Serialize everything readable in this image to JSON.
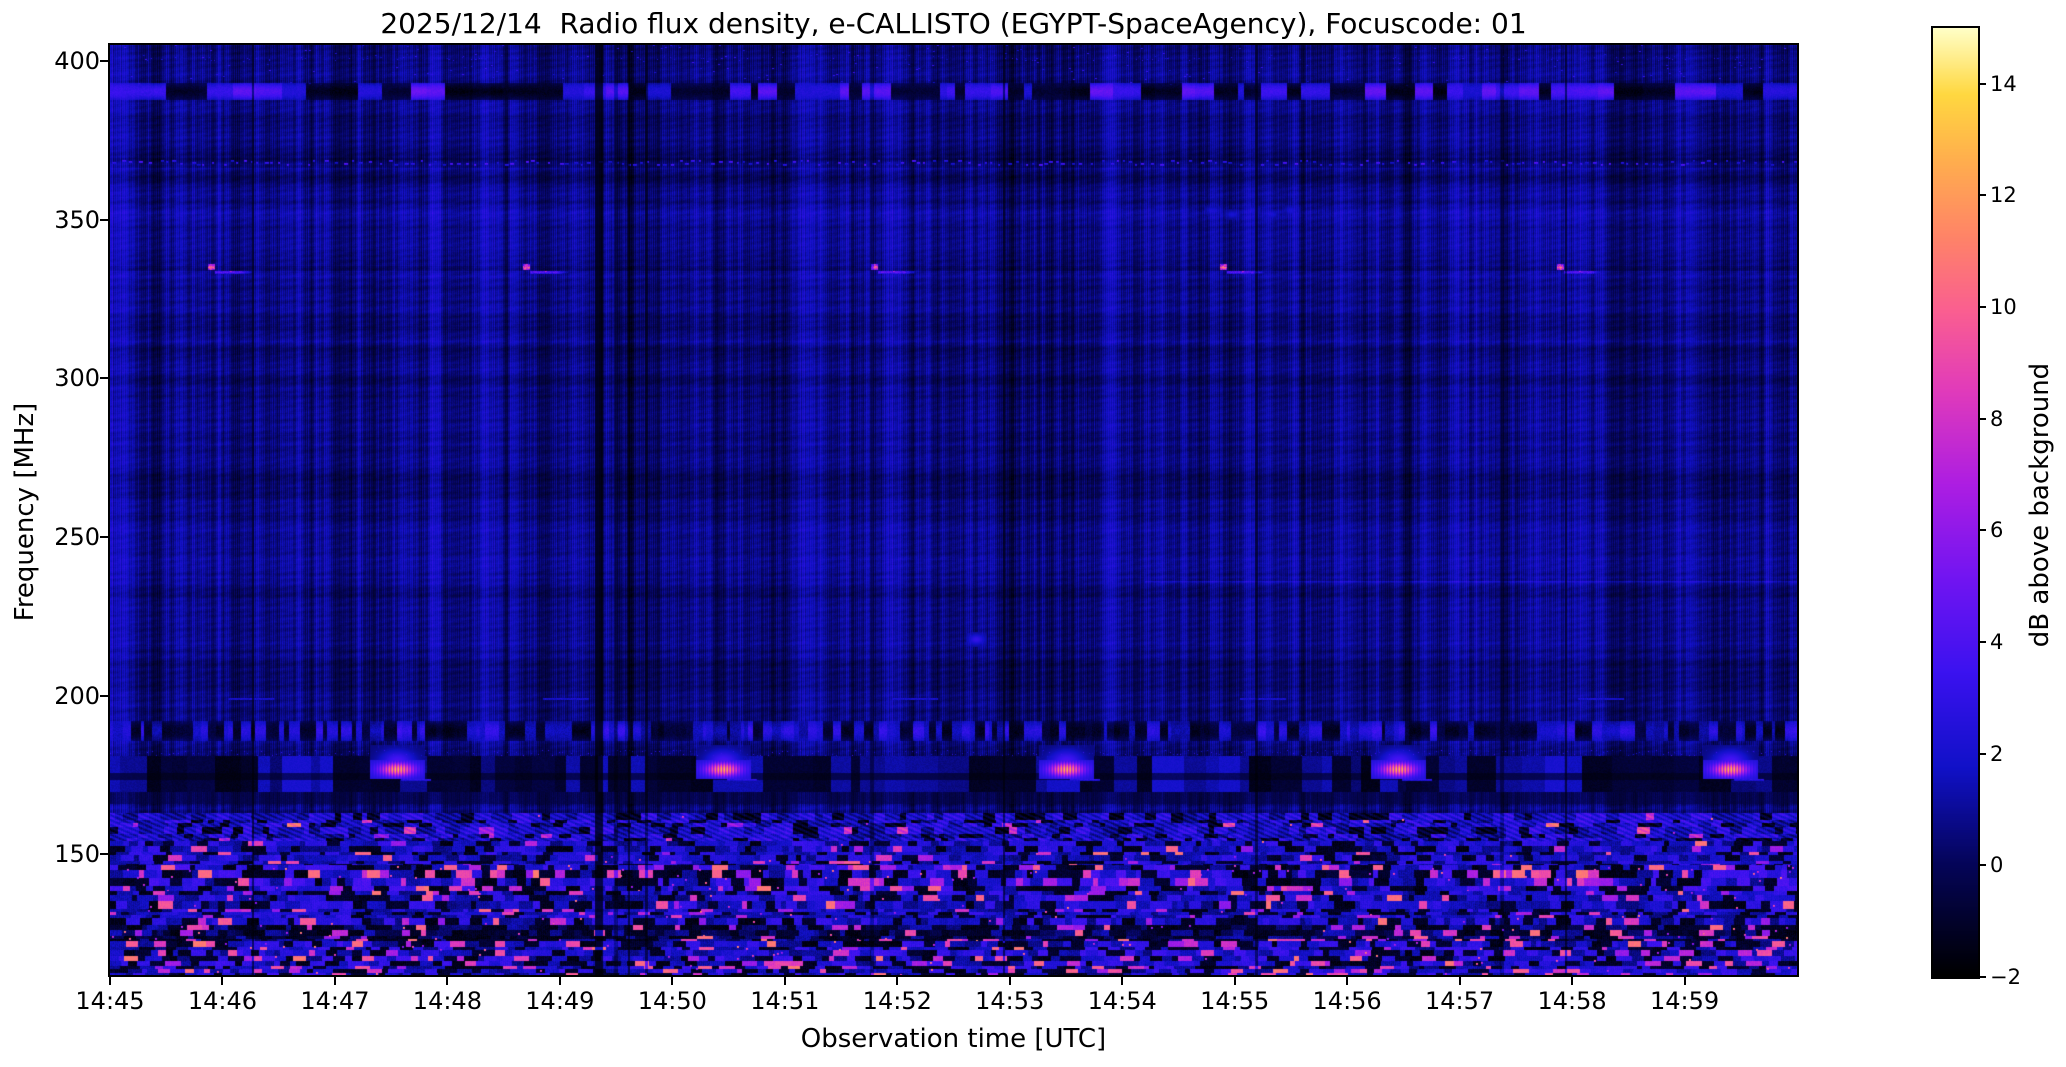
{
  "figure": {
    "title": "2025/12/14  Radio flux density, e-CALLISTO (EGYPT-SpaceAgency), Focuscode: 01"
  },
  "chart_data": {
    "type": "heatmap",
    "subtype": "radio-spectrogram",
    "title": "2025/12/14  Radio flux density, e-CALLISTO (EGYPT-SpaceAgency), Focuscode: 01",
    "xlabel": "Observation time [UTC]",
    "ylabel": "Frequency [MHz]",
    "x_tick_labels": [
      "14:45",
      "14:46",
      "14:47",
      "14:48",
      "14:49",
      "14:50",
      "14:51",
      "14:52",
      "14:53",
      "14:54",
      "14:55",
      "14:56",
      "14:57",
      "14:58",
      "14:59"
    ],
    "x_range_minutes": [
      0,
      15
    ],
    "y_tick_values": [
      400,
      350,
      300,
      250,
      200,
      150
    ],
    "freq_range_mhz": [
      112,
      405
    ],
    "grid": false,
    "colorbar": {
      "label": "dB above background",
      "tick_values": [
        -2,
        0,
        2,
        4,
        6,
        8,
        10,
        12,
        14
      ],
      "range_db": [
        -2,
        15
      ],
      "colormap_stops": [
        [
          0.0,
          "#000000"
        ],
        [
          0.12,
          "#05055a"
        ],
        [
          0.22,
          "#1111c8"
        ],
        [
          0.32,
          "#3b12f0"
        ],
        [
          0.42,
          "#7215f2"
        ],
        [
          0.52,
          "#ae1ee2"
        ],
        [
          0.62,
          "#e23cba"
        ],
        [
          0.7,
          "#fa5e92"
        ],
        [
          0.78,
          "#ff8468"
        ],
        [
          0.86,
          "#ffae4e"
        ],
        [
          0.93,
          "#ffd840"
        ],
        [
          1.0,
          "#ffffc8"
        ]
      ]
    },
    "background_level_db": 0.8,
    "features": {
      "rfi_band_high": {
        "freq_mhz": [
          388,
          393
        ],
        "desc": "broken dark/bright-blue interference band"
      },
      "speckle_row": {
        "freq_mhz": 368,
        "desc": "row of small bright-blue dashes"
      },
      "carrier_streaks_335": {
        "freq_mhz": 335,
        "start_times_min": [
          0.95,
          3.75,
          6.85,
          9.95,
          12.95
        ],
        "desc": "bright pink dot with blue tail, every ~3 min"
      },
      "faint_dashes_200": {
        "freq_mhz": 200,
        "start_times_min": [
          1.05,
          3.85,
          6.95,
          10.05,
          13.05
        ]
      },
      "faint_line_240": {
        "freq_mhz": 236,
        "time_range_min": [
          9.2,
          15
        ]
      },
      "blue_blob": {
        "time_min": 7.7,
        "freq_mhz": 218
      },
      "faint_blobs_353": {
        "time_range_min": [
          9.8,
          10.5
        ],
        "freq_mhz": 353
      },
      "speckle_band_189": {
        "freq_mhz": [
          186,
          192
        ]
      },
      "dark_band_178": {
        "freq_mhz": [
          170,
          181
        ]
      },
      "bursts_178": {
        "freq_mhz": 177,
        "center_times_min": [
          2.55,
          5.45,
          8.5,
          11.45,
          14.4
        ],
        "peak_db": 13,
        "desc": "striped yellow/orange/pink bursts"
      },
      "broadband_noise_below_mhz": 163,
      "dark_column_gaps_min": [
        1.26,
        4.31,
        4.48,
        4.61,
        4.76,
        6.76,
        7.94,
        10.18,
        12.36,
        12.94
      ]
    }
  },
  "layout_text": {
    "xlabel": "Observation time [UTC]",
    "ylabel": "Frequency [MHz]",
    "colorbar_label": "dB above background"
  }
}
